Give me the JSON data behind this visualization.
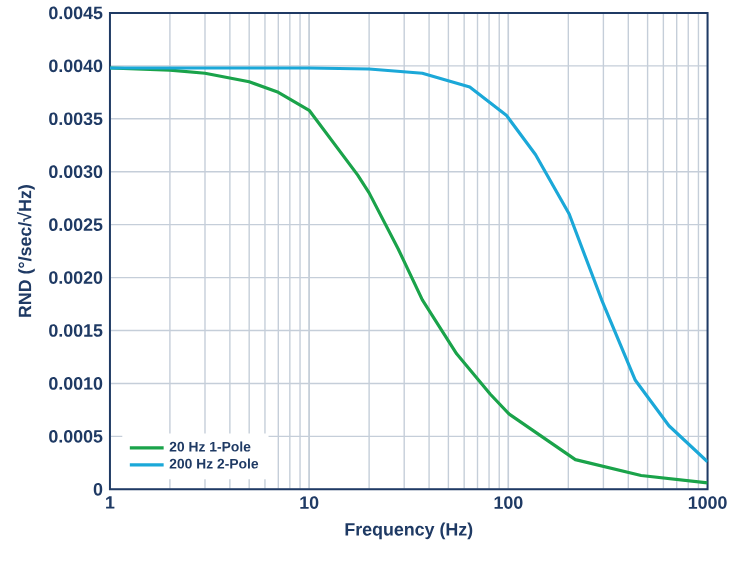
{
  "chart_data": {
    "type": "line",
    "xlabel": "Frequency (Hz)",
    "ylabel": "RND (°/sec/√Hz)",
    "log": "x",
    "grid": true,
    "legend": "bottom left",
    "xlim": [
      1,
      1000
    ],
    "xticks": [
      1,
      10,
      100,
      1000
    ],
    "ylim": [
      0,
      0.0045
    ],
    "yticks": [
      {
        "value": 0,
        "label": "0"
      },
      {
        "value": 0.0005,
        "label": "0.0005"
      },
      {
        "value": 0.001,
        "label": "0.0010"
      },
      {
        "value": 0.0015,
        "label": "0.0015"
      },
      {
        "value": 0.002,
        "label": "0.0020"
      },
      {
        "value": 0.0025,
        "label": "0.0025"
      },
      {
        "value": 0.003,
        "label": "0.0030"
      },
      {
        "value": 0.0035,
        "label": "0.0035"
      },
      {
        "value": 0.004,
        "label": "0.0040"
      },
      {
        "value": 0.0045,
        "label": "0.0045"
      }
    ],
    "series": [
      {
        "name": "20 Hz 1-Pole",
        "color": "#1aa34a",
        "x": [
          1,
          2,
          3,
          5,
          7,
          10,
          17.5,
          20,
          28,
          37,
          55,
          81,
          101,
          217,
          464,
          1000
        ],
        "values": [
          0.00398,
          0.00396,
          0.00393,
          0.00385,
          0.00375,
          0.00358,
          0.00297,
          0.0028,
          0.00227,
          0.00179,
          0.00128,
          0.0009,
          0.00071,
          0.00028,
          0.00013,
          6e-05
        ]
      },
      {
        "name": "200 Hz 2-Pole",
        "color": "#1ba8d8",
        "x": [
          1,
          10,
          20,
          37,
          64,
          98,
          137,
          202,
          294,
          434,
          640,
          1000
        ],
        "values": [
          0.00398,
          0.00398,
          0.00397,
          0.00393,
          0.0038,
          0.00353,
          0.00316,
          0.0026,
          0.00179,
          0.00103,
          0.0006,
          0.00026
        ]
      }
    ]
  }
}
